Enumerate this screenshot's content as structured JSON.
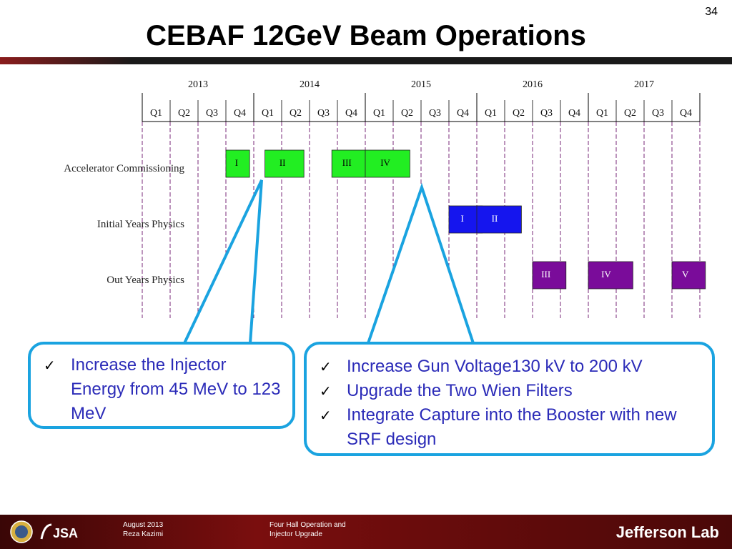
{
  "slide": {
    "number": "34",
    "title": "CEBAF 12GeV Beam Operations"
  },
  "timeline": {
    "years": [
      "2013",
      "2014",
      "2015",
      "2016",
      "2017"
    ],
    "quarters": [
      "Q1",
      "Q2",
      "Q3",
      "Q4"
    ],
    "rows": [
      {
        "label": "Accelerator Commissioning",
        "color": "#22ee22",
        "text_color": "#000000",
        "phases": [
          {
            "label": "I",
            "start": "2013 Q4"
          },
          {
            "label": "II",
            "start": "2014 Q1"
          },
          {
            "label": "III",
            "start": "2014 Q3"
          },
          {
            "label": "IV",
            "start": "2015 Q1"
          }
        ]
      },
      {
        "label": "Initial Years Physics",
        "color": "#1515ee",
        "text_color": "#ffffff",
        "phases": [
          {
            "label": "I",
            "start": "2015 Q4"
          },
          {
            "label": "II",
            "start": "2016 Q1"
          }
        ]
      },
      {
        "label": "Out Years Physics",
        "color": "#7a0c9a",
        "text_color": "#ffffff",
        "phases": [
          {
            "label": "III",
            "start": "2016 Q3"
          },
          {
            "label": "IV",
            "start": "2017 Q1"
          },
          {
            "label": "V",
            "start": "2017 Q4"
          }
        ]
      }
    ],
    "colors": {
      "grid": "#7a2a7a",
      "callout": "#1aa3e0"
    }
  },
  "callouts": {
    "left": [
      "Increase the Injector Energy  from 45 MeV to 123 MeV"
    ],
    "right": [
      "Increase Gun Voltage130 kV to 200 kV",
      "Upgrade the Two Wien Filters",
      "Integrate Capture into the Booster with new SRF design"
    ]
  },
  "footer": {
    "date": "August 2013",
    "author": "Reza Kazimi",
    "topic_line1": "Four Hall Operation and",
    "topic_line2": "Injector Upgrade",
    "logo_text": "Jefferson Lab",
    "partner_logo": "JSA"
  }
}
